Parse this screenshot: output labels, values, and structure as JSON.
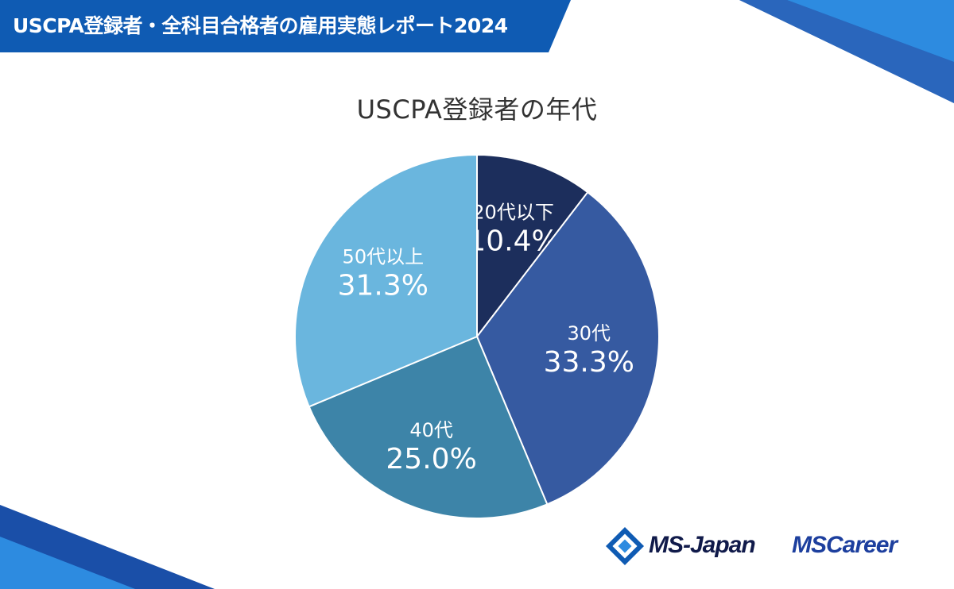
{
  "header": {
    "title": "USCPA登録者・全科目合格者の雇用実態レポート2024"
  },
  "colors": {
    "header_bg": "#0f5bb3",
    "accent_light": "#2d8be0",
    "slice_20s": "#1c2e5c",
    "slice_30s": "#365aa1",
    "slice_40s": "#3d84a8",
    "slice_50s": "#6ab6de"
  },
  "chart_data": {
    "type": "pie",
    "title": "USCPA登録者の年代",
    "start": "12 o'clock, clockwise",
    "slices": [
      {
        "label": "20代以下",
        "value": 10.4,
        "value_label": "10.4%",
        "color": "#1c2e5c"
      },
      {
        "label": "30代",
        "value": 33.3,
        "value_label": "33.3%",
        "color": "#365aa1"
      },
      {
        "label": "40代",
        "value": 25.0,
        "value_label": "25.0%",
        "color": "#3d84a8"
      },
      {
        "label": "50代以上",
        "value": 31.3,
        "value_label": "31.3%",
        "color": "#6ab6de"
      }
    ]
  },
  "logos": {
    "ms_japan": "MS-Japan",
    "ms_career": "MSCareer"
  }
}
